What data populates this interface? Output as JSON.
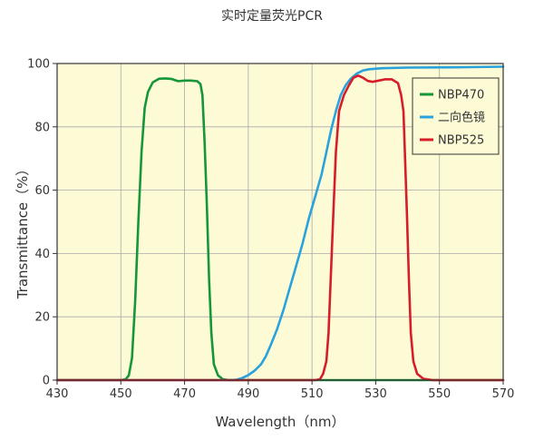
{
  "chart_data": {
    "type": "line",
    "title": "实时定量荧光PCR",
    "xlabel": "Wavelength（nm）",
    "ylabel": "Transmittance（%）",
    "xlim": [
      430,
      570
    ],
    "ylim": [
      0,
      100
    ],
    "xticks": [
      430,
      450,
      470,
      490,
      510,
      530,
      550,
      570
    ],
    "yticks": [
      0,
      20,
      40,
      60,
      80,
      100
    ],
    "grid": true,
    "background": "#fdfbd6",
    "legend_position": "top-right",
    "series": [
      {
        "name": "NBP470",
        "color": "#16963a",
        "points": [
          [
            430,
            0
          ],
          [
            450,
            0
          ],
          [
            451.5,
            0.3
          ],
          [
            452.5,
            1.5
          ],
          [
            453.5,
            7
          ],
          [
            454.5,
            25
          ],
          [
            455.5,
            50
          ],
          [
            456.5,
            72
          ],
          [
            457.5,
            86
          ],
          [
            458.5,
            91
          ],
          [
            460,
            94
          ],
          [
            462,
            95.2
          ],
          [
            464,
            95.3
          ],
          [
            466,
            95.1
          ],
          [
            468,
            94.4
          ],
          [
            470,
            94.6
          ],
          [
            472,
            94.6
          ],
          [
            474,
            94.4
          ],
          [
            475,
            93.5
          ],
          [
            475.6,
            90
          ],
          [
            476.3,
            75
          ],
          [
            477,
            55
          ],
          [
            477.7,
            32
          ],
          [
            478.4,
            15
          ],
          [
            479.2,
            5
          ],
          [
            480.5,
            1.5
          ],
          [
            482,
            0.3
          ],
          [
            484,
            0
          ],
          [
            570,
            0
          ]
        ]
      },
      {
        "name": "二向色镜",
        "color": "#2aa2dc",
        "points": [
          [
            430,
            0
          ],
          [
            484,
            0
          ],
          [
            486,
            0.1
          ],
          [
            488,
            0.6
          ],
          [
            490,
            1.6
          ],
          [
            492,
            3
          ],
          [
            494,
            5
          ],
          [
            495.5,
            7.5
          ],
          [
            497,
            11
          ],
          [
            499,
            16
          ],
          [
            501,
            22
          ],
          [
            503,
            29
          ],
          [
            505,
            36
          ],
          [
            507,
            43
          ],
          [
            509,
            51
          ],
          [
            511,
            58
          ],
          [
            513,
            65
          ],
          [
            514.5,
            72
          ],
          [
            516,
            79
          ],
          [
            517.5,
            85
          ],
          [
            519,
            90
          ],
          [
            520.5,
            93
          ],
          [
            522,
            95
          ],
          [
            524,
            96.8
          ],
          [
            526,
            97.8
          ],
          [
            528,
            98.2
          ],
          [
            532,
            98.5
          ],
          [
            540,
            98.7
          ],
          [
            555,
            98.8
          ],
          [
            570,
            99
          ]
        ]
      },
      {
        "name": "NBP525",
        "color": "#d61e2a",
        "points": [
          [
            430,
            0
          ],
          [
            511,
            0
          ],
          [
            512.5,
            0.3
          ],
          [
            513.5,
            2
          ],
          [
            514.5,
            6
          ],
          [
            515.2,
            15
          ],
          [
            516,
            35
          ],
          [
            516.8,
            55
          ],
          [
            517.5,
            72
          ],
          [
            518.5,
            85
          ],
          [
            520,
            90
          ],
          [
            521.5,
            93
          ],
          [
            523,
            95.5
          ],
          [
            524.5,
            96.2
          ],
          [
            526,
            95.5
          ],
          [
            527.5,
            94.5
          ],
          [
            529,
            94.2
          ],
          [
            531,
            94.6
          ],
          [
            533,
            95
          ],
          [
            535,
            95
          ],
          [
            537,
            93.8
          ],
          [
            538,
            90
          ],
          [
            538.7,
            85
          ],
          [
            539.2,
            70
          ],
          [
            539.8,
            52
          ],
          [
            540.4,
            32
          ],
          [
            541,
            15
          ],
          [
            541.8,
            6
          ],
          [
            543,
            2
          ],
          [
            545,
            0.4
          ],
          [
            548,
            0
          ],
          [
            570,
            0
          ]
        ]
      }
    ]
  }
}
